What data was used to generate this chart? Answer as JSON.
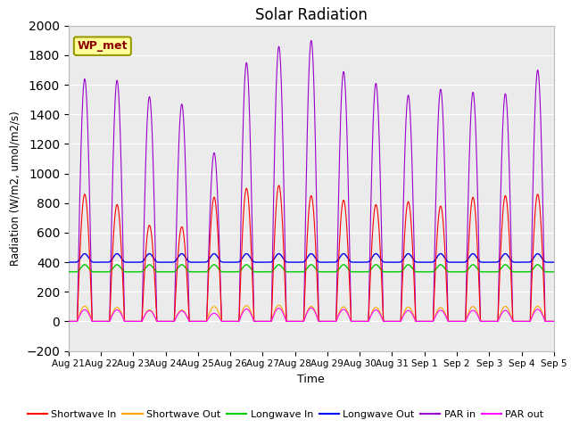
{
  "title": "Solar Radiation",
  "xlabel": "Time",
  "ylabel": "Radiation (W/m2, umol/m2/s)",
  "ylim": [
    -200,
    2000
  ],
  "yticks": [
    -200,
    0,
    200,
    400,
    600,
    800,
    1000,
    1200,
    1400,
    1600,
    1800,
    2000
  ],
  "xtick_labels": [
    "Aug 21",
    "Aug 22",
    "Aug 23",
    "Aug 24",
    "Aug 25",
    "Aug 26",
    "Aug 27",
    "Aug 28",
    "Aug 29",
    "Aug 30",
    "Aug 31",
    "Sep 1",
    "Sep 2",
    "Sep 3",
    "Sep 4",
    "Sep 5"
  ],
  "dataset_label": "WP_met",
  "series_colors": {
    "sw_in": "#FF0000",
    "sw_out": "#FFA500",
    "lw_in": "#00CC00",
    "lw_out": "#0000EE",
    "par_in": "#9900CC",
    "par_out": "#FF00FF"
  },
  "series_labels": [
    "Shortwave In",
    "Shortwave Out",
    "Longwave In",
    "Longwave Out",
    "PAR in",
    "PAR out"
  ],
  "plot_bg": "#EBEBEB",
  "fig_bg": "#FFFFFF",
  "sw_peaks": [
    860,
    790,
    650,
    640,
    840,
    900,
    920,
    850,
    820,
    790,
    810,
    780,
    840,
    850,
    860
  ],
  "par_in_peaks": [
    1640,
    1630,
    1520,
    1470,
    1140,
    1750,
    1860,
    1900,
    1690,
    1610,
    1530,
    1570,
    1550,
    1540,
    1700
  ],
  "n_days": 15,
  "pts_per_day": 96,
  "lw_in_base": 360,
  "lw_out_base": 430
}
